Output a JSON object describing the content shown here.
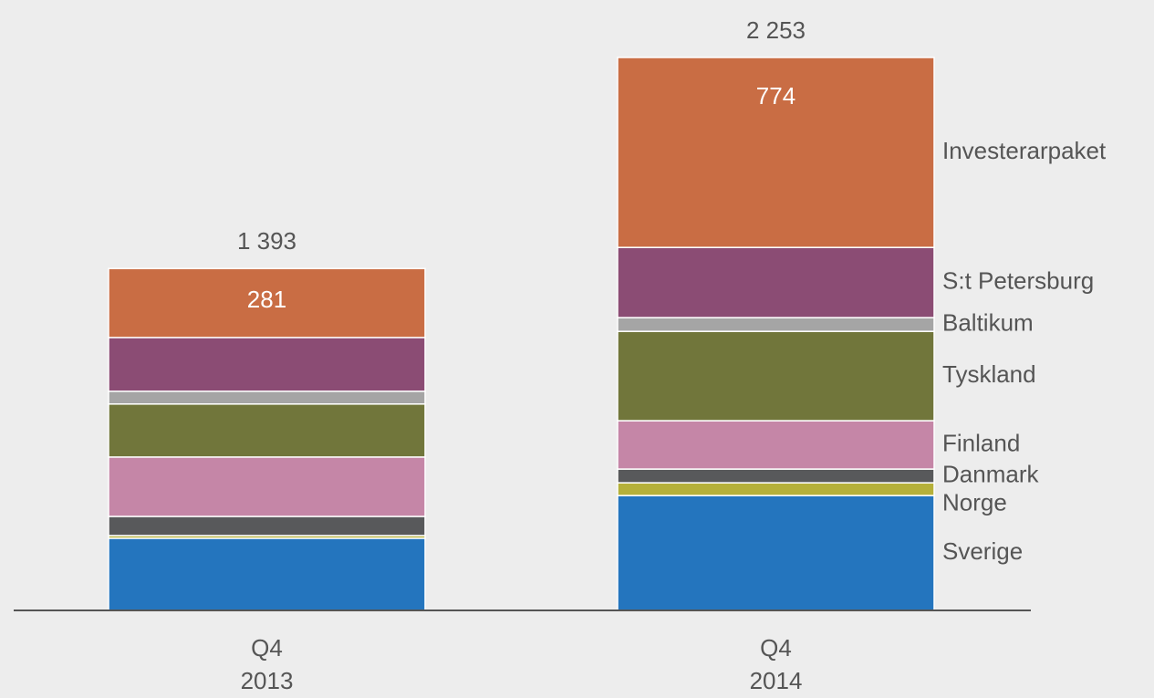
{
  "chart_data": {
    "type": "stacked_bar",
    "categories": [
      [
        "Q4",
        "2013"
      ],
      [
        "Q4",
        "2014"
      ]
    ],
    "series": [
      {
        "name": "Sverige",
        "color": "#2475be",
        "values": [
          294,
          468
        ]
      },
      {
        "name": "Norge",
        "color": "#b5b03a",
        "values": [
          11,
          52
        ]
      },
      {
        "name": "Danmark",
        "color": "#58595b",
        "values": [
          78,
          56
        ]
      },
      {
        "name": "Finland",
        "color": "#c586a7",
        "values": [
          242,
          197
        ]
      },
      {
        "name": "Tyskland",
        "color": "#71763b",
        "values": [
          216,
          364
        ]
      },
      {
        "name": "Baltikum",
        "color": "#a5a5a5",
        "values": [
          52,
          56
        ]
      },
      {
        "name": "S:t Petersburg",
        "color": "#8b4c74",
        "values": [
          219,
          286
        ]
      },
      {
        "name": "Investerarpaket",
        "color": "#c96d44",
        "values": [
          281,
          774
        ],
        "show_labels": true
      }
    ],
    "totals": [
      1393,
      2253
    ],
    "total_labels": [
      "1 393",
      "2 253"
    ]
  }
}
